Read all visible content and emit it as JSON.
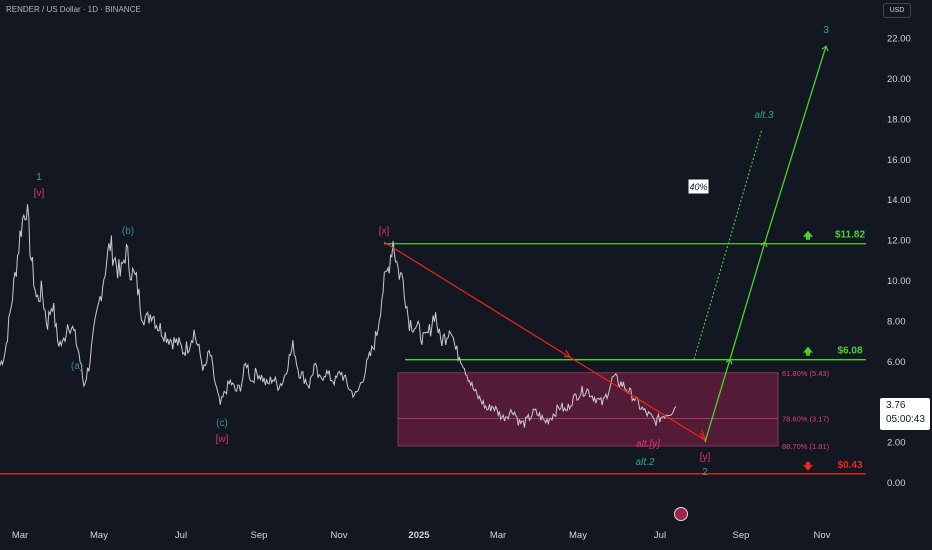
{
  "header": {
    "title": "RENDER / US Dollar · 1D · BINANCE",
    "currency": "USD"
  },
  "colors": {
    "background": "#131722",
    "price": "#c8cad0",
    "green": "#4cd12d",
    "red": "#e8261c",
    "magenta_zone": "#6b1d3d",
    "teal": "#2fa58f",
    "wave_blue": "#3d8d97",
    "pink": "#e0326f"
  },
  "chart_data": {
    "type": "line",
    "ylim": [
      -0.4,
      23.2
    ],
    "y_ticks": [
      "22.00",
      "20.00",
      "18.00",
      "16.00",
      "14.00",
      "12.00",
      "10.00",
      "8.00",
      "6.00",
      "4.00",
      "2.00",
      "0.00"
    ],
    "x_ticks": [
      "Mar",
      "May",
      "Jul",
      "Sep",
      "Nov",
      "2025",
      "Mar",
      "May",
      "Jul",
      "Sep",
      "Nov"
    ],
    "last_price": "3.76",
    "countdown": "05:00:43",
    "series": [
      {
        "values": [
          5.8,
          6.5,
          8.5,
          10.5,
          12.6,
          13.8,
          11.0,
          9.0,
          9.5,
          7.8,
          9.0,
          7.0,
          6.8,
          8.0,
          7.5,
          6.5,
          4.8,
          5.8,
          7.5,
          9.0,
          10.5,
          11.8,
          11.0,
          10.2,
          11.5,
          10.5,
          10.0,
          8.5,
          8.0,
          8.5,
          7.8,
          7.5,
          7.2,
          7.0,
          6.9,
          6.5,
          6.8,
          7.5,
          6.5,
          5.5,
          6.5,
          5.0,
          3.8,
          4.5,
          5.0,
          4.5,
          4.8,
          6.0,
          5.0,
          5.5,
          5.2,
          4.8,
          5.2,
          4.8,
          5.0,
          6.0,
          6.8,
          5.5,
          5.2,
          4.8,
          5.8,
          5.0,
          5.5,
          5.2,
          5.0,
          5.5,
          5.0,
          4.5,
          4.3,
          5.0,
          5.8,
          6.5,
          7.5,
          9.5,
          10.5,
          12.0,
          10.5,
          10.0,
          8.0,
          7.8,
          7.5,
          7.0,
          7.5,
          8.5,
          7.0,
          7.2,
          7.8,
          6.5,
          6.2,
          5.5,
          4.8,
          4.3,
          4.0,
          3.6,
          3.8,
          3.5,
          3.2,
          3.4,
          3.6,
          3.0,
          2.9,
          3.2,
          3.5,
          3.3,
          3.0,
          3.2,
          3.5,
          3.8,
          3.5,
          4.0,
          4.3,
          4.5,
          4.6,
          4.3,
          4.1,
          3.9,
          4.5,
          5.2,
          5.0,
          4.8,
          4.5,
          4.2,
          3.8,
          3.5,
          3.3,
          3.0,
          3.2,
          3.4,
          3.5,
          3.76
        ]
      }
    ],
    "levels": [
      {
        "label": "$11.82",
        "value": 11.82,
        "color": "#4cd12d",
        "arrow": "up"
      },
      {
        "label": "$6.08",
        "value": 6.08,
        "color": "#4cd12d",
        "arrow": "up"
      },
      {
        "label": "$0.43",
        "value": 0.43,
        "color": "#e8261c",
        "arrow": "down"
      }
    ],
    "zone": {
      "top": 5.43,
      "bottom": 1.81,
      "fib_labels": [
        "61.80% (5.43)",
        "78.60% (3.17)",
        "88.70% (1.81)"
      ],
      "fib_values": [
        5.43,
        3.17,
        1.81
      ]
    },
    "annotations": {
      "wave_1": "1",
      "wave_v": "[v]",
      "wave_b": "(b)",
      "wave_a": "(a)",
      "wave_c": "(c)",
      "wave_w": "[w]",
      "wave_x": "[x]",
      "alt_y": "alt.[y]",
      "alt_2": "alt.2",
      "wave_y": "[y]",
      "wave_2": "2",
      "wave_3": "3",
      "alt_3": "alt.3",
      "probability": "40%"
    }
  }
}
